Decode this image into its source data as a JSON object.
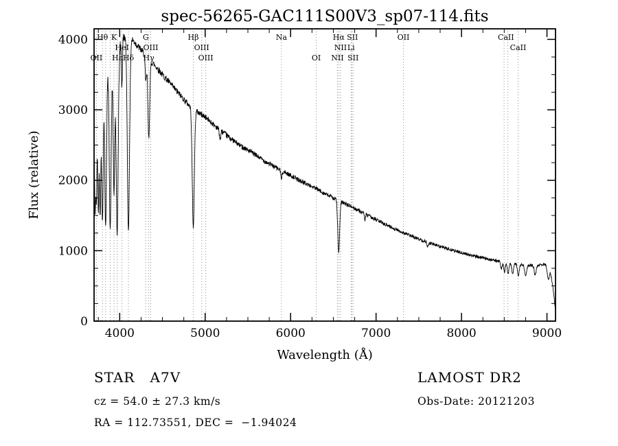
{
  "chart_data": {
    "type": "line",
    "title": "spec-56265-GAC111S00V3_sp07-114.fits",
    "xlabel": "Wavelength (Å)",
    "ylabel": "Flux (relative)",
    "xlim": [
      3700,
      9100
    ],
    "ylim": [
      0,
      4150
    ],
    "x_ticks": [
      4000,
      5000,
      6000,
      7000,
      8000,
      9000
    ],
    "y_ticks": [
      0,
      1000,
      2000,
      3000,
      4000
    ],
    "x_minor_step": 250,
    "y_minor_step": 250,
    "grid": false,
    "line_color": "#000000",
    "marker_color": "#8a8a8a",
    "spectral_lines": [
      {
        "label": "Hθ",
        "wavelength": 3798,
        "row": 1
      },
      {
        "label": "K",
        "wavelength": 3933,
        "row": 1
      },
      {
        "label": "G",
        "wavelength": 4305,
        "row": 1
      },
      {
        "label": "Hβ",
        "wavelength": 4861,
        "row": 1
      },
      {
        "label": "Na",
        "wavelength": 5892,
        "row": 1
      },
      {
        "label": "Hα",
        "wavelength": 6563,
        "row": 1
      },
      {
        "label": "SII",
        "wavelength": 6724,
        "row": 1
      },
      {
        "label": "OII",
        "wavelength": 7320,
        "row": 1
      },
      {
        "label": "CaII",
        "wavelength": 8520,
        "row": 1
      },
      {
        "label": "HeI",
        "wavelength": 4026,
        "row": 2
      },
      {
        "label": "OIII",
        "wavelength": 4363,
        "row": 2
      },
      {
        "label": "OIII",
        "wavelength": 4959,
        "row": 2
      },
      {
        "label": "NII",
        "wavelength": 6584,
        "row": 2
      },
      {
        "label": "Li",
        "wavelength": 6708,
        "row": 2
      },
      {
        "label": "CaII",
        "wavelength": 8662,
        "row": 2
      },
      {
        "label": "OII",
        "wavelength": 3727,
        "row": 3
      },
      {
        "label": "Hε",
        "wavelength": 3970,
        "row": 3
      },
      {
        "label": "Hδ",
        "wavelength": 4102,
        "row": 3
      },
      {
        "label": "Hγ",
        "wavelength": 4340,
        "row": 3
      },
      {
        "label": "OIII",
        "wavelength": 5007,
        "row": 3
      },
      {
        "label": "OI",
        "wavelength": 6300,
        "row": 3
      },
      {
        "label": "NII",
        "wavelength": 6548,
        "row": 3
      },
      {
        "label": "SII",
        "wavelength": 6731,
        "row": 3
      }
    ],
    "spectral_line_markers": [
      3727,
      3798,
      3835,
      3889,
      3933,
      3970,
      4026,
      4102,
      4305,
      4340,
      4363,
      4861,
      4959,
      5007,
      5892,
      6300,
      6548,
      6563,
      6584,
      6708,
      6716,
      6731,
      7320,
      8498,
      8542,
      8662
    ],
    "continuum": [
      [
        3700,
        2500
      ],
      [
        3725,
        2900
      ],
      [
        3760,
        3150
      ],
      [
        3800,
        3350
      ],
      [
        3840,
        3500
      ],
      [
        3880,
        3620
      ],
      [
        3920,
        3700
      ],
      [
        3960,
        3780
      ],
      [
        4000,
        3900
      ],
      [
        4040,
        4020
      ],
      [
        4080,
        4060
      ],
      [
        4120,
        4030
      ],
      [
        4160,
        3980
      ],
      [
        4200,
        3920
      ],
      [
        4250,
        3850
      ],
      [
        4300,
        3780
      ],
      [
        4360,
        3700
      ],
      [
        4420,
        3620
      ],
      [
        4500,
        3500
      ],
      [
        4600,
        3360
      ],
      [
        4700,
        3220
      ],
      [
        4800,
        3080
      ],
      [
        4861,
        3010
      ],
      [
        4950,
        2940
      ],
      [
        5000,
        2900
      ],
      [
        5100,
        2790
      ],
      [
        5200,
        2690
      ],
      [
        5300,
        2590
      ],
      [
        5400,
        2500
      ],
      [
        5500,
        2430
      ],
      [
        5600,
        2350
      ],
      [
        5700,
        2270
      ],
      [
        5800,
        2200
      ],
      [
        5900,
        2130
      ],
      [
        6000,
        2070
      ],
      [
        6100,
        2000
      ],
      [
        6200,
        1940
      ],
      [
        6300,
        1880
      ],
      [
        6400,
        1810
      ],
      [
        6500,
        1750
      ],
      [
        6600,
        1690
      ],
      [
        6700,
        1630
      ],
      [
        6800,
        1570
      ],
      [
        6900,
        1500
      ],
      [
        7000,
        1440
      ],
      [
        7100,
        1380
      ],
      [
        7200,
        1320
      ],
      [
        7300,
        1265
      ],
      [
        7400,
        1215
      ],
      [
        7500,
        1165
      ],
      [
        7600,
        1120
      ],
      [
        7700,
        1080
      ],
      [
        7800,
        1040
      ],
      [
        7900,
        1005
      ],
      [
        8000,
        970
      ],
      [
        8100,
        940
      ],
      [
        8200,
        910
      ],
      [
        8300,
        885
      ],
      [
        8400,
        860
      ],
      [
        8500,
        835
      ],
      [
        8600,
        815
      ],
      [
        8700,
        800
      ],
      [
        8800,
        790
      ],
      [
        8900,
        795
      ],
      [
        8960,
        810
      ],
      [
        9010,
        780
      ],
      [
        9040,
        700
      ],
      [
        9060,
        560
      ],
      [
        9080,
        380
      ],
      [
        9100,
        150
      ]
    ],
    "absorption_lines": [
      [
        3712,
        0.4,
        6
      ],
      [
        3727,
        0.42,
        7
      ],
      [
        3750,
        0.5,
        7
      ],
      [
        3771,
        0.52,
        8
      ],
      [
        3798,
        0.58,
        9
      ],
      [
        3835,
        0.62,
        10
      ],
      [
        3889,
        0.64,
        11
      ],
      [
        3933,
        0.52,
        9
      ],
      [
        3970,
        0.68,
        12
      ],
      [
        4026,
        0.16,
        6
      ],
      [
        4102,
        0.68,
        13
      ],
      [
        4305,
        0.1,
        8
      ],
      [
        4340,
        0.3,
        11
      ],
      [
        4861,
        0.56,
        12
      ],
      [
        5175,
        0.05,
        8
      ],
      [
        5892,
        0.06,
        6
      ],
      [
        6563,
        0.43,
        11
      ],
      [
        6869,
        0.05,
        7
      ],
      [
        7605,
        0.05,
        8
      ],
      [
        8467,
        0.12,
        9
      ],
      [
        8502,
        0.16,
        9
      ],
      [
        8545,
        0.18,
        9
      ],
      [
        8598,
        0.17,
        10
      ],
      [
        8665,
        0.2,
        10
      ],
      [
        8750,
        0.2,
        11
      ],
      [
        8863,
        0.18,
        11
      ],
      [
        9015,
        0.22,
        12
      ]
    ],
    "noise": {
      "seed": 42,
      "base": 12,
      "frac": 0.01,
      "blue_boost": 1.8,
      "blue_limit": 4050
    },
    "sample_step": 3,
    "annotations": {
      "star_type": "STAR   A7V",
      "cz": "cz = 54.0 ± 27.3 km/s",
      "ra_dec": "RA = 112.73551, DEC =  −1.94024",
      "survey": "LAMOST DR2",
      "obs_date": "Obs-Date: 20121203"
    }
  }
}
